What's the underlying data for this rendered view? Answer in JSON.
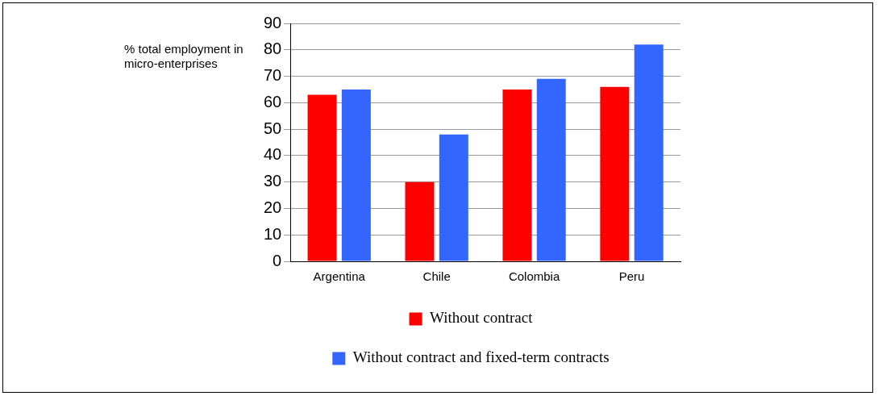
{
  "chart_data": {
    "type": "bar",
    "ylabel": "% total employment in micro-enterprises",
    "categories": [
      "Argentina",
      "Chile",
      "Colombia",
      "Peru"
    ],
    "series": [
      {
        "name": "Without contract",
        "color": "#ff0000",
        "values": [
          63,
          30,
          65,
          66
        ]
      },
      {
        "name": "Without contract and fixed-term contracts",
        "color": "#3366ff",
        "values": [
          65,
          48,
          69,
          82
        ]
      }
    ],
    "ylim": [
      0,
      90
    ],
    "yticks": [
      0,
      10,
      20,
      30,
      40,
      50,
      60,
      70,
      80,
      90
    ],
    "grid": "y",
    "legend": "bottom"
  }
}
